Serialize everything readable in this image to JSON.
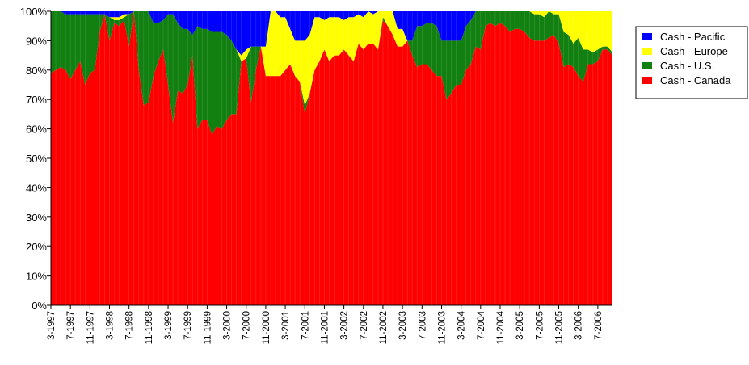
{
  "chart_data": {
    "type": "stacked_area",
    "categories": [
      "3-1997",
      null,
      null,
      null,
      "7-1997",
      null,
      null,
      null,
      "11-1997",
      null,
      null,
      null,
      "3-1998",
      null,
      null,
      null,
      "7-1998",
      null,
      null,
      null,
      "11-1998",
      null,
      null,
      null,
      "3-1999",
      null,
      null,
      null,
      "7-1999",
      null,
      null,
      null,
      "11-1999",
      null,
      null,
      null,
      "3-2000",
      null,
      null,
      null,
      "7-2000",
      null,
      null,
      null,
      "11-2000",
      null,
      null,
      null,
      "3-2001",
      null,
      null,
      null,
      "7-2001",
      null,
      null,
      null,
      "11-2001",
      null,
      null,
      null,
      "3-2002",
      null,
      null,
      null,
      "7-2002",
      null,
      null,
      null,
      "11-2002",
      null,
      null,
      null,
      "3-2003",
      null,
      null,
      null,
      "7-2003",
      null,
      null,
      null,
      "11-2003",
      null,
      null,
      null,
      "3-2004",
      null,
      null,
      null,
      "7-2004",
      null,
      null,
      null,
      "11-2004",
      null,
      null,
      null,
      "3-2005",
      null,
      null,
      null,
      "7-2005",
      null,
      null,
      null,
      "11-2005",
      null,
      null,
      null,
      "3-2006",
      null,
      null,
      null,
      "7-2006",
      null,
      null,
      null
    ],
    "series": [
      {
        "name": "Cash - Canada",
        "color": "#ff0000",
        "values": [
          79,
          80,
          81,
          80,
          77,
          80,
          83,
          75,
          79,
          80,
          93,
          99,
          90,
          96,
          95,
          97,
          88,
          100,
          80,
          68,
          69,
          78,
          83,
          87,
          75,
          62,
          73,
          72,
          75,
          85,
          60,
          63,
          63,
          58,
          61,
          60,
          63,
          65,
          65,
          83,
          84,
          69,
          80,
          88,
          78,
          78,
          78,
          78,
          80,
          82,
          78,
          76,
          65,
          72,
          80,
          83,
          87,
          83,
          85,
          85,
          87,
          85,
          83,
          89,
          87,
          89,
          89,
          87,
          97,
          95,
          92,
          88,
          88,
          90,
          85,
          81,
          82,
          82,
          80,
          78,
          78,
          70,
          72,
          75,
          75,
          80,
          82,
          88,
          87,
          95,
          96,
          95,
          96,
          95,
          93,
          94,
          94,
          93,
          91,
          90,
          90,
          90,
          91,
          92,
          89,
          81,
          82,
          81,
          78,
          76,
          82,
          82,
          83,
          87,
          87,
          85
        ]
      },
      {
        "name": "Cash - U.S.",
        "color": "#118011",
        "values": [
          21,
          20,
          19,
          19,
          22,
          19,
          16,
          24,
          20,
          19,
          6,
          0,
          8,
          1,
          2,
          1,
          11,
          0,
          20,
          32,
          31,
          18,
          13,
          10,
          24,
          37,
          23,
          22,
          19,
          7,
          35,
          31,
          31,
          35,
          32,
          33,
          29,
          25,
          22,
          0,
          0,
          19,
          8,
          0,
          0,
          0,
          0,
          0,
          0,
          0,
          0,
          0,
          3,
          0,
          0,
          0,
          0,
          0,
          0,
          0,
          0,
          0,
          0,
          0,
          0,
          0,
          0,
          0,
          1,
          0,
          0,
          0,
          0,
          0,
          5,
          14,
          13,
          14,
          16,
          17,
          12,
          20,
          18,
          15,
          15,
          15,
          15,
          12,
          13,
          5,
          4,
          5,
          4,
          5,
          7,
          6,
          6,
          7,
          9,
          9,
          9,
          8,
          9,
          7,
          10,
          12,
          10,
          8,
          13,
          11,
          5,
          4,
          4,
          1,
          1,
          1
        ]
      },
      {
        "name": "Cash - Europe",
        "color": "#ffff00",
        "values": [
          0,
          0,
          0,
          0,
          0,
          0,
          0,
          0,
          0,
          0,
          0,
          0,
          0,
          1,
          1,
          1,
          0,
          0,
          0,
          0,
          0,
          0,
          0,
          0,
          0,
          0,
          0,
          0,
          0,
          0,
          0,
          0,
          0,
          0,
          0,
          0,
          0,
          0,
          0,
          2,
          3,
          0,
          0,
          0,
          10,
          22,
          22,
          20,
          18,
          12,
          12,
          14,
          22,
          20,
          18,
          15,
          10,
          15,
          13,
          13,
          10,
          13,
          15,
          10,
          11,
          11,
          10,
          13,
          2,
          5,
          8,
          6,
          6,
          0,
          0,
          0,
          0,
          0,
          0,
          0,
          0,
          0,
          0,
          0,
          0,
          0,
          0,
          0,
          0,
          0,
          0,
          0,
          0,
          0,
          0,
          0,
          0,
          0,
          0,
          1,
          1,
          2,
          0,
          1,
          1,
          7,
          8,
          11,
          9,
          13,
          13,
          14,
          13,
          12,
          12,
          14
        ]
      },
      {
        "name": "Cash - Pacific",
        "color": "#0000ff",
        "values": [
          0,
          0,
          0,
          1,
          1,
          1,
          1,
          1,
          1,
          1,
          1,
          1,
          2,
          2,
          2,
          1,
          1,
          0,
          0,
          0,
          0,
          4,
          4,
          3,
          1,
          1,
          4,
          6,
          6,
          8,
          5,
          6,
          6,
          7,
          7,
          7,
          8,
          10,
          13,
          15,
          13,
          12,
          12,
          12,
          12,
          0,
          0,
          2,
          2,
          6,
          10,
          10,
          10,
          8,
          2,
          2,
          3,
          2,
          2,
          2,
          3,
          2,
          2,
          1,
          2,
          0,
          1,
          0,
          0,
          0,
          0,
          6,
          6,
          10,
          10,
          5,
          5,
          4,
          4,
          5,
          10,
          10,
          10,
          10,
          10,
          5,
          3,
          0,
          0,
          0,
          0,
          0,
          0,
          0,
          0,
          0,
          0,
          0,
          0,
          0,
          0,
          0,
          0,
          0,
          0,
          0,
          0,
          0,
          0,
          0,
          0,
          0,
          0,
          0,
          0,
          0
        ]
      }
    ],
    "ylim": [
      0,
      100
    ],
    "yticks": [
      {
        "value": 0,
        "label": "0%"
      },
      {
        "value": 10,
        "label": "10%"
      },
      {
        "value": 20,
        "label": "20%"
      },
      {
        "value": 30,
        "label": "30%"
      },
      {
        "value": 40,
        "label": "40%"
      },
      {
        "value": 50,
        "label": "50%"
      },
      {
        "value": 60,
        "label": "60%"
      },
      {
        "value": 70,
        "label": "70%"
      },
      {
        "value": 80,
        "label": "80%"
      },
      {
        "value": 90,
        "label": "90%"
      },
      {
        "value": 100,
        "label": "100%"
      }
    ],
    "legend": "right"
  }
}
